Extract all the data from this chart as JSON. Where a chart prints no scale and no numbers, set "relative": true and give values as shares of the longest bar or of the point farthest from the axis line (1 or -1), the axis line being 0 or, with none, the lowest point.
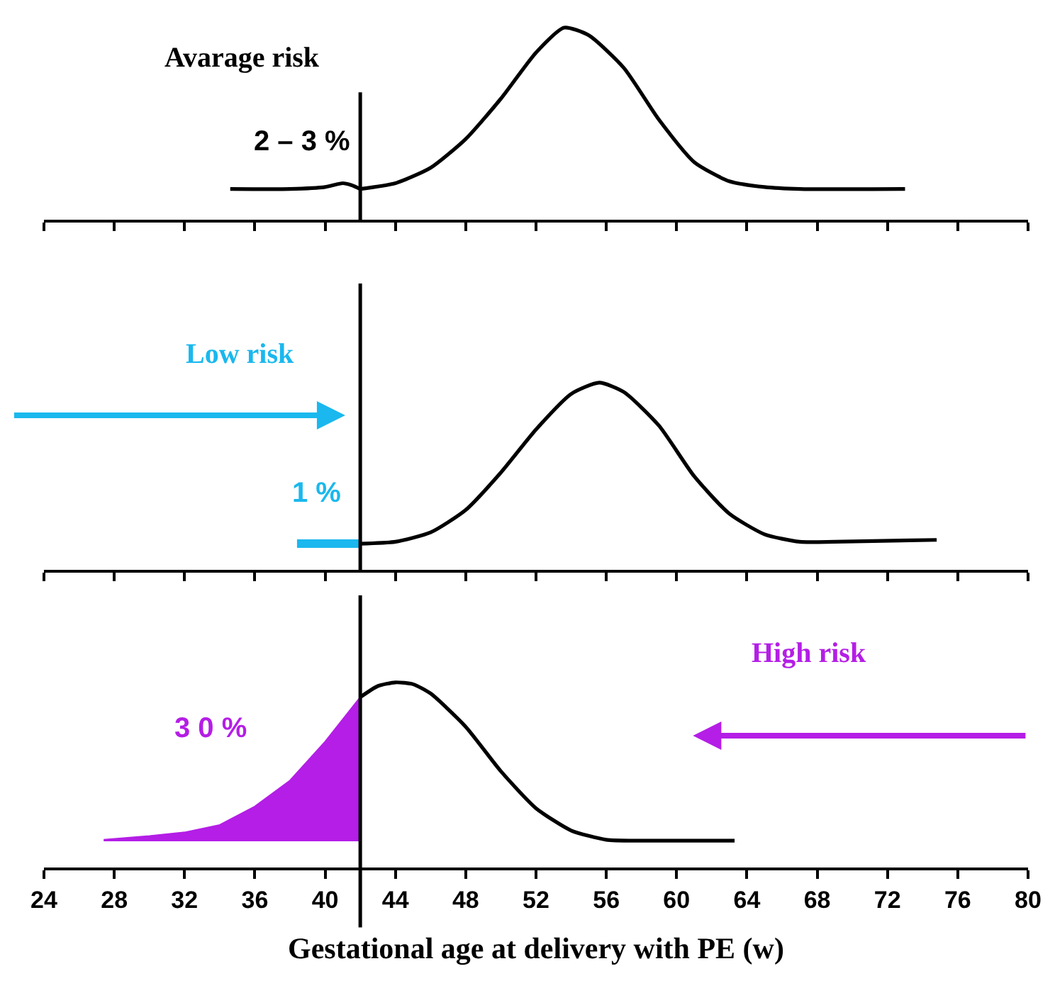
{
  "chart_data": [
    {
      "type": "line",
      "relative": true,
      "xlim": [
        24,
        80
      ],
      "xticks": [
        24,
        28,
        32,
        36,
        40,
        44,
        48,
        52,
        56,
        60,
        64,
        68,
        72,
        76,
        80
      ],
      "tick_labels": false,
      "annotations": [
        "Avarage risk",
        "2 – 3 %"
      ],
      "ref_lines": [
        {
          "axis": "x",
          "value": 42
        }
      ],
      "series": [
        {
          "color": "#000000",
          "x": [
            34.6,
            38,
            40,
            41,
            41.5,
            42
          ],
          "values": [
            0.16,
            0.16,
            0.17,
            0.19,
            0.18,
            0.16
          ]
        },
        {
          "color": "#000000",
          "x": [
            42,
            44,
            46,
            48,
            50,
            52,
            53.6,
            55,
            57,
            59,
            61,
            63,
            65,
            67,
            73
          ],
          "values": [
            0.16,
            0.19,
            0.27,
            0.42,
            0.63,
            0.87,
            1.0,
            0.96,
            0.79,
            0.52,
            0.3,
            0.2,
            0.17,
            0.16,
            0.16
          ]
        }
      ]
    },
    {
      "type": "line",
      "relative": true,
      "xlim": [
        24,
        80
      ],
      "xticks": [
        24,
        28,
        32,
        36,
        40,
        44,
        48,
        52,
        56,
        60,
        64,
        68,
        72,
        76,
        80
      ],
      "tick_labels": false,
      "annotations": [
        "Low risk",
        "1 %"
      ],
      "ref_lines": [
        {
          "axis": "x",
          "value": 42
        }
      ],
      "series": [
        {
          "color": "#1ab8ee",
          "x": [
            38.4,
            42
          ],
          "values": [
            0.14,
            0.14
          ]
        },
        {
          "color": "#000000",
          "x": [
            42,
            44,
            46,
            48,
            50,
            52,
            54,
            55.6,
            57,
            59,
            61,
            63,
            65,
            67,
            69,
            74.8
          ],
          "values": [
            0.14,
            0.15,
            0.2,
            0.32,
            0.52,
            0.75,
            0.94,
            1.0,
            0.95,
            0.77,
            0.5,
            0.3,
            0.19,
            0.15,
            0.15,
            0.16
          ]
        }
      ]
    },
    {
      "type": "line",
      "relative": true,
      "xlim": [
        24,
        80
      ],
      "xticks": [
        24,
        28,
        32,
        36,
        40,
        44,
        48,
        52,
        56,
        60,
        64,
        68,
        72,
        76,
        80
      ],
      "xlabel": "Gestational age at delivery with PE (w)",
      "annotations": [
        "High risk",
        "3 0 %"
      ],
      "ref_lines": [
        {
          "axis": "x",
          "value": 42
        }
      ],
      "series": [
        {
          "type": "area",
          "color": "#b41ee6",
          "x": [
            27.4,
            30,
            32,
            34,
            36,
            38,
            40,
            42,
            42,
            27.4
          ],
          "values": [
            0.15,
            0.17,
            0.19,
            0.23,
            0.33,
            0.47,
            0.68,
            0.92,
            0.145,
            0.145
          ]
        },
        {
          "color": "#000000",
          "x": [
            42,
            43,
            44,
            45,
            46,
            48,
            50,
            52,
            54,
            56,
            58,
            63.3
          ],
          "values": [
            0.92,
            0.98,
            1.0,
            0.99,
            0.94,
            0.76,
            0.52,
            0.32,
            0.2,
            0.15,
            0.145,
            0.145
          ]
        }
      ]
    }
  ]
}
